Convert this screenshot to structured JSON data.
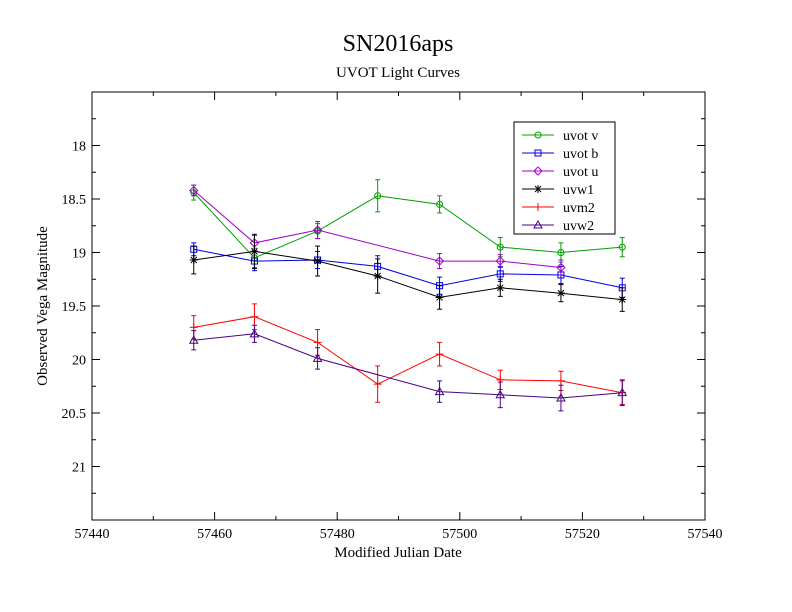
{
  "chart_data": {
    "type": "line",
    "title": "SN2016aps",
    "subtitle": "UVOT Light Curves",
    "xlabel": "Modified Julian Date",
    "ylabel": "Observed Vega Magnitude",
    "xlim": [
      57440,
      57540
    ],
    "ylim": [
      21.5,
      17.5
    ],
    "y_inverted": true,
    "xticks": [
      57440,
      57460,
      57480,
      57500,
      57520,
      57540
    ],
    "yticks": [
      18,
      18.5,
      19,
      19.5,
      20,
      20.5,
      21
    ],
    "xtick_labels": [
      "57440",
      "57460",
      "57480",
      "57500",
      "57520",
      "57540"
    ],
    "ytick_labels": [
      "18",
      "18.5",
      "19",
      "19.5",
      "20",
      "20.5",
      "21"
    ],
    "grid": false,
    "legend_position": "top-right",
    "series": [
      {
        "name": "uvot v",
        "color": "#00a000",
        "marker": "circle",
        "x": [
          57456.6,
          57466.5,
          57476.8,
          57486.6,
          57496.7,
          57506.6,
          57516.5,
          57526.5
        ],
        "y": [
          18.44,
          19.05,
          18.8,
          18.47,
          18.55,
          18.95,
          19.0,
          18.95
        ],
        "err": [
          0.07,
          0.09,
          0.07,
          0.15,
          0.08,
          0.09,
          0.09,
          0.09
        ]
      },
      {
        "name": "uvot b",
        "color": "#0000e0",
        "marker": "square",
        "x": [
          57456.6,
          57466.5,
          57476.8,
          57486.6,
          57496.7,
          57506.6,
          57516.5,
          57526.5
        ],
        "y": [
          18.97,
          19.08,
          19.07,
          19.13,
          19.31,
          19.2,
          19.21,
          19.33
        ],
        "err": [
          0.06,
          0.09,
          0.08,
          0.1,
          0.08,
          0.07,
          0.08,
          0.09
        ]
      },
      {
        "name": "uvot u",
        "color": "#a000c8",
        "marker": "diamond",
        "x": [
          57456.6,
          57466.5,
          57476.8,
          57496.7,
          57506.6,
          57516.5
        ],
        "y": [
          18.42,
          18.91,
          18.79,
          19.08,
          19.08,
          19.14
        ],
        "err": [
          0.05,
          0.07,
          0.08,
          0.07,
          0.06,
          0.07
        ]
      },
      {
        "name": "uvw1",
        "color": "#000000",
        "marker": "star",
        "x": [
          57456.6,
          57466.5,
          57476.8,
          57486.6,
          57496.7,
          57506.6,
          57516.5,
          57526.5
        ],
        "y": [
          19.07,
          18.99,
          19.08,
          19.22,
          19.42,
          19.33,
          19.38,
          19.44
        ],
        "err": [
          0.13,
          0.16,
          0.14,
          0.16,
          0.11,
          0.08,
          0.08,
          0.11
        ]
      },
      {
        "name": "uvm2",
        "color": "#ff0000",
        "marker": "plus",
        "x": [
          57456.6,
          57466.5,
          57476.8,
          57486.6,
          57496.7,
          57506.6,
          57516.5,
          57526.5
        ],
        "y": [
          19.7,
          19.6,
          19.84,
          20.23,
          19.95,
          20.19,
          20.2,
          20.31
        ],
        "err": [
          0.11,
          0.12,
          0.12,
          0.17,
          0.11,
          0.09,
          0.09,
          0.11
        ]
      },
      {
        "name": "uvw2",
        "color": "#4b0082",
        "marker": "triangle",
        "x": [
          57456.6,
          57466.5,
          57476.8,
          57496.7,
          57506.6,
          57516.5,
          57526.5
        ],
        "y": [
          19.82,
          19.76,
          19.99,
          20.3,
          20.33,
          20.36,
          20.31
        ],
        "err": [
          0.09,
          0.08,
          0.1,
          0.1,
          0.12,
          0.12,
          0.12
        ]
      }
    ]
  }
}
